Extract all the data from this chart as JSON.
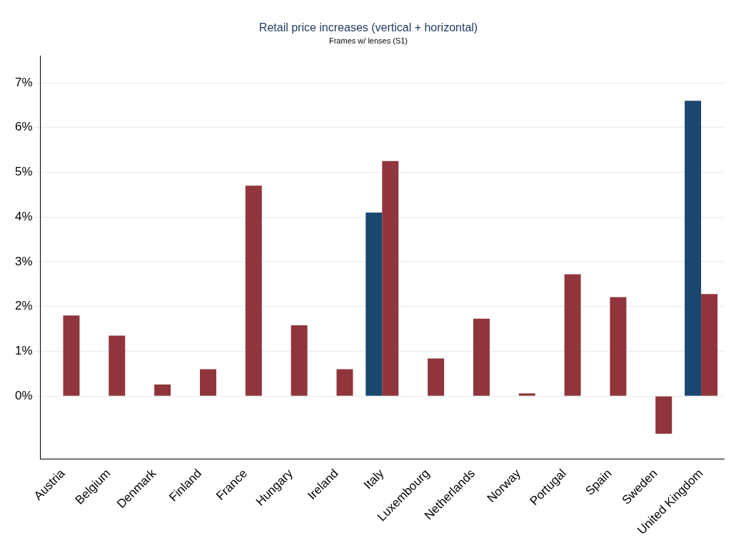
{
  "chart_data": {
    "type": "bar",
    "title": "Retail price increases (vertical + horizontal)",
    "subtitle": "Frames w/ lenses (S1)",
    "categories": [
      "Austria",
      "Belgium",
      "Denmark",
      "Finland",
      "France",
      "Hungary",
      "Ireland",
      "Italy",
      "Luxembourg",
      "Netherlands",
      "Norway",
      "Portugal",
      "Spain",
      "Sweden",
      "United Kingdom"
    ],
    "series": [
      {
        "color": "#1a476f",
        "values": [
          null,
          null,
          null,
          null,
          null,
          null,
          null,
          4.1,
          null,
          null,
          null,
          null,
          null,
          null,
          6.6
        ]
      },
      {
        "color": "#90353b",
        "values": [
          1.8,
          1.35,
          0.26,
          0.6,
          4.7,
          1.58,
          0.6,
          5.25,
          0.84,
          1.73,
          0.06,
          2.72,
          2.21,
          -0.84,
          2.28
        ]
      }
    ],
    "ylim": [
      -1.4,
      7.6
    ],
    "yticks": [
      {
        "value": 0,
        "label": "0%"
      },
      {
        "value": 1,
        "label": "1%"
      },
      {
        "value": 2,
        "label": "2%"
      },
      {
        "value": 3,
        "label": "3%"
      },
      {
        "value": 4,
        "label": "4%"
      },
      {
        "value": 5,
        "label": "5%"
      },
      {
        "value": 6,
        "label": "6%"
      },
      {
        "value": 7,
        "label": "7%"
      }
    ],
    "grid": "y"
  }
}
